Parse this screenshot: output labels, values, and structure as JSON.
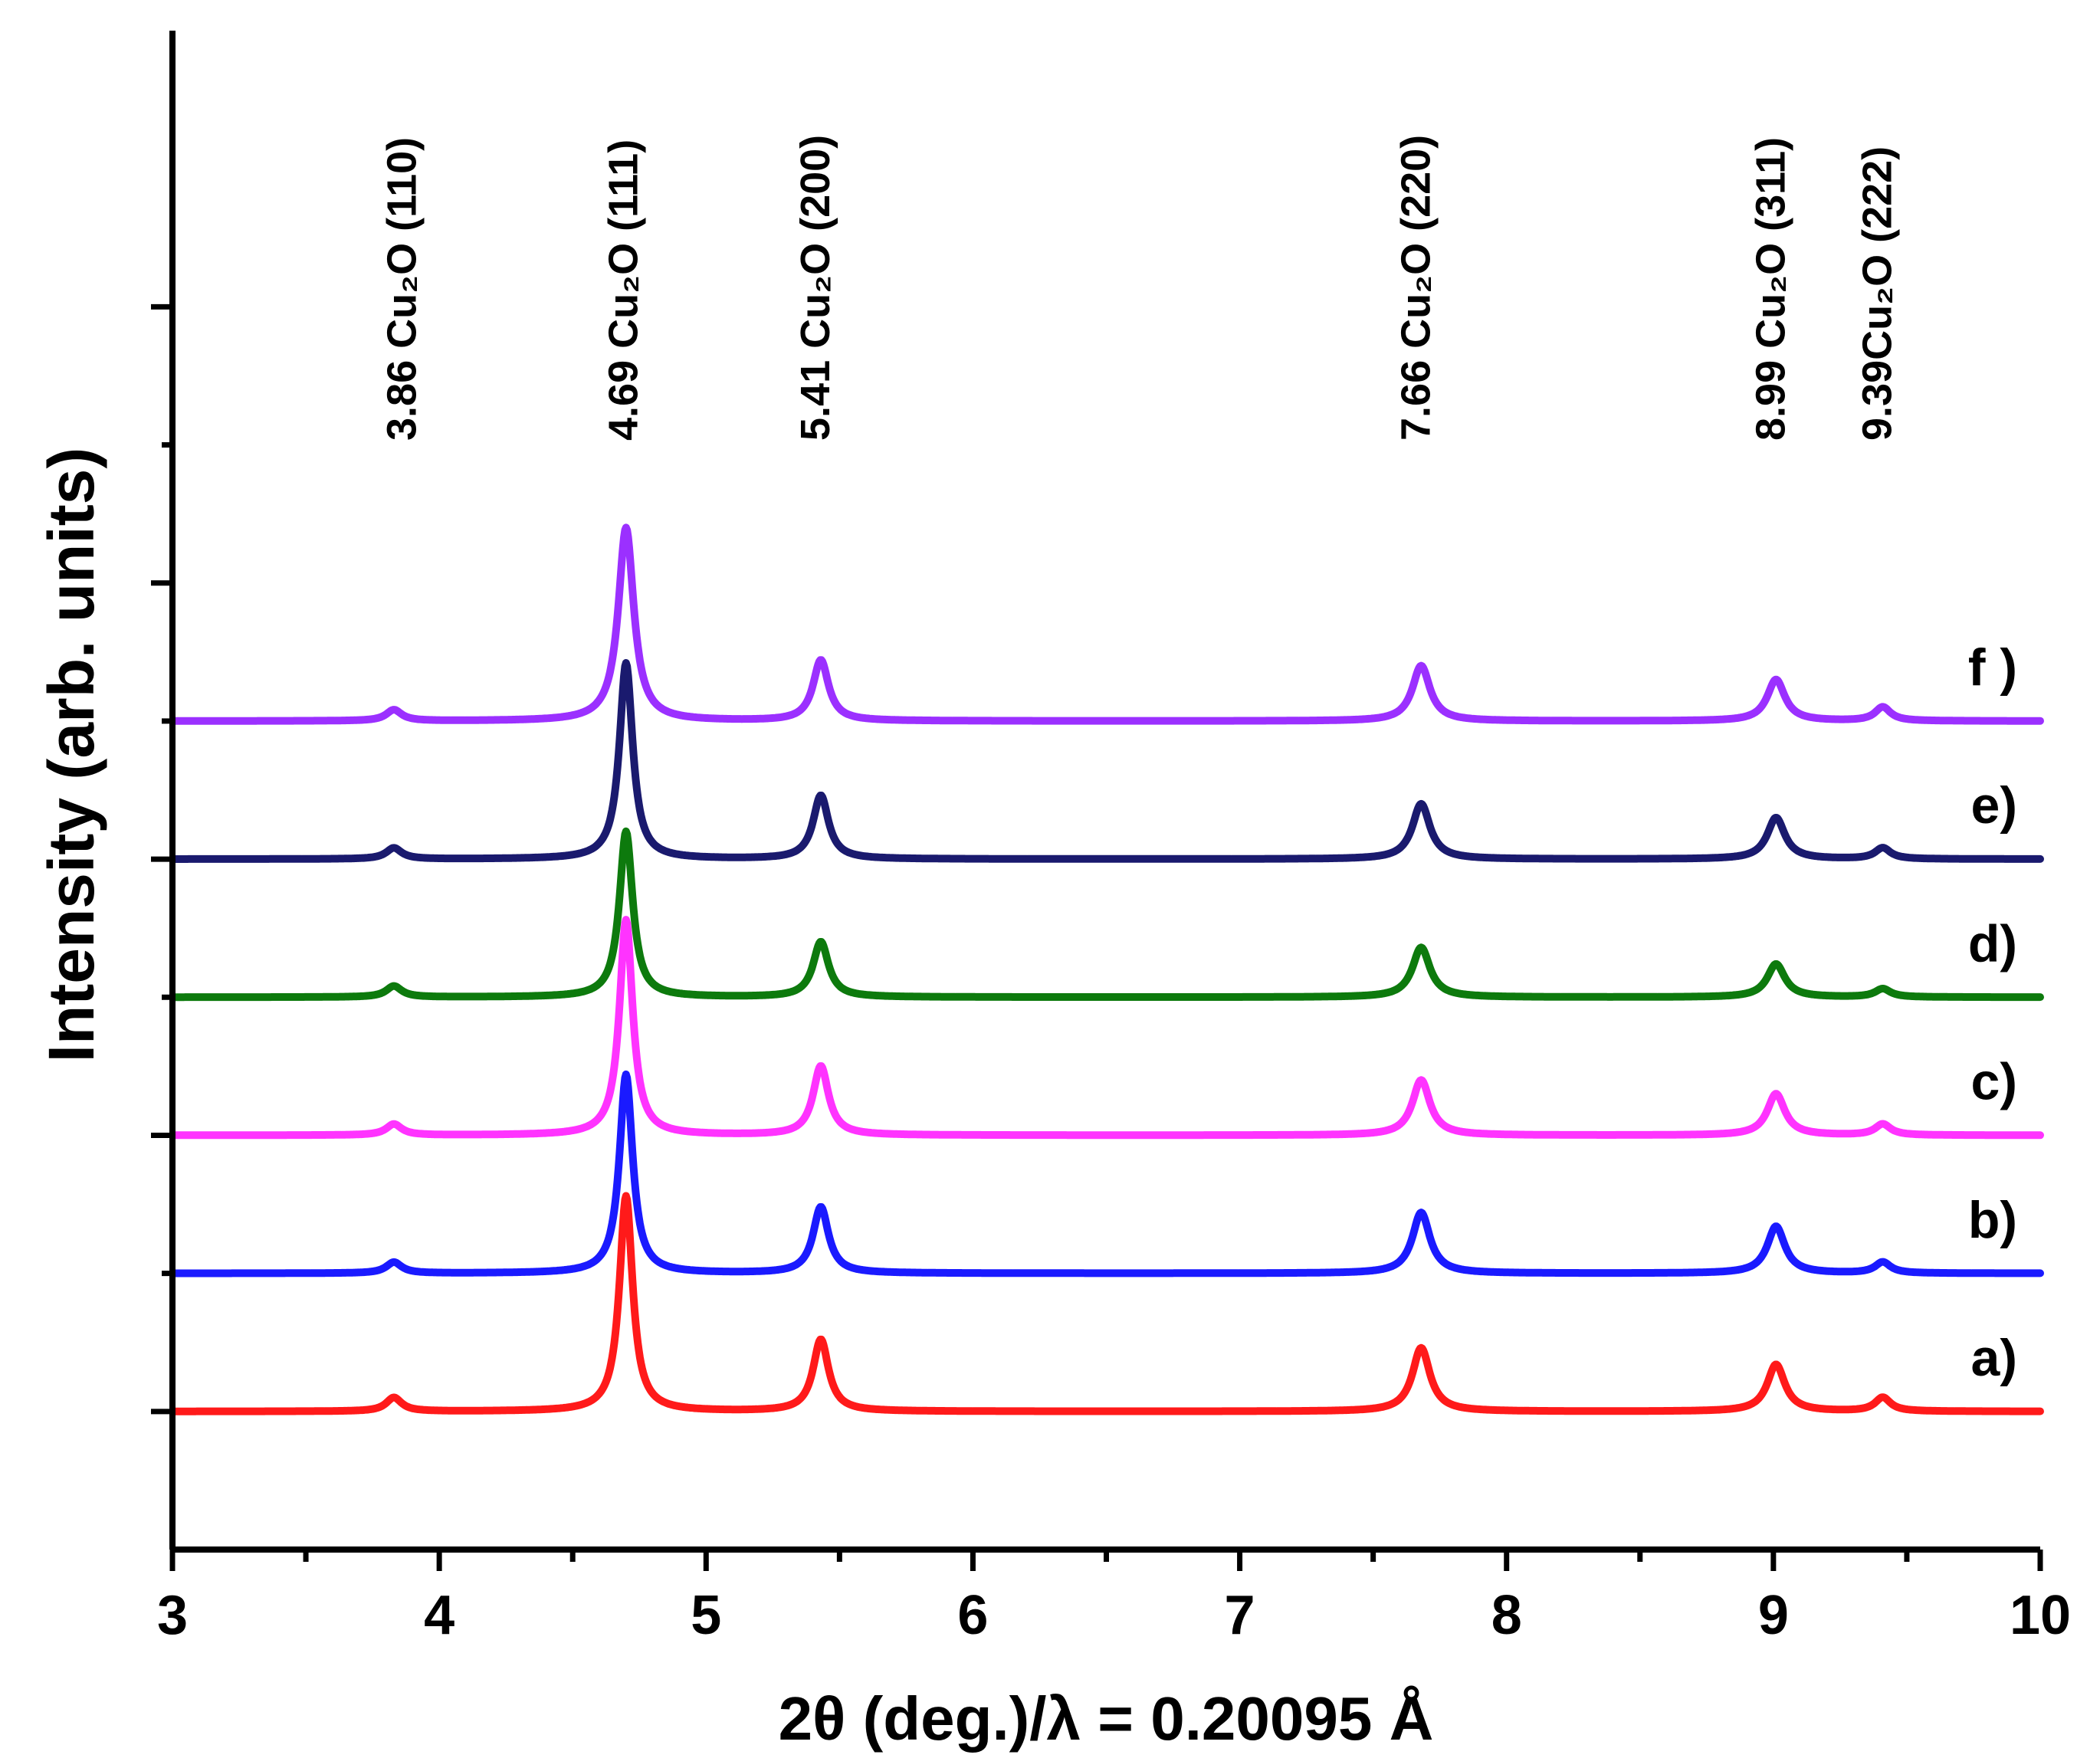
{
  "chart_data": {
    "type": "line",
    "title": "",
    "xlabel": "2θ (deg.)/λ = 0.20095 Å",
    "ylabel": "Intensity (arb. units)",
    "xlim": [
      3,
      10
    ],
    "ylim": [
      -0.5,
      5
    ],
    "x_ticks": [
      "3",
      "4",
      "5",
      "6",
      "7",
      "8",
      "9",
      "10"
    ],
    "y_ticks_labeled": false,
    "peak_annotations": [
      {
        "x": 3.86,
        "text": "3.86 Cu₂O (110)"
      },
      {
        "x": 4.69,
        "text": "4.69 Cu₂O (111)"
      },
      {
        "x": 5.41,
        "text": "5.41 Cu₂O (200)"
      },
      {
        "x": 7.66,
        "text": "7.66 Cu₂O (220)"
      },
      {
        "x": 8.99,
        "text": "8.99 Cu₂O (311)"
      },
      {
        "x": 9.39,
        "text": "9.39Cu₂O (222)"
      }
    ],
    "series": [
      {
        "name": "a)",
        "color": "#ff1a1a",
        "baseline": 0.0,
        "peaks": [
          {
            "x": 3.83,
            "h": 0.05,
            "w": 0.035
          },
          {
            "x": 4.7,
            "h": 0.78,
            "w": 0.03
          },
          {
            "x": 5.43,
            "h": 0.26,
            "w": 0.035
          },
          {
            "x": 7.68,
            "h": 0.23,
            "w": 0.04
          },
          {
            "x": 9.01,
            "h": 0.17,
            "w": 0.04
          },
          {
            "x": 9.41,
            "h": 0.05,
            "w": 0.035
          }
        ]
      },
      {
        "name": "b)",
        "color": "#1a1aff",
        "baseline": 0.5,
        "peaks": [
          {
            "x": 3.83,
            "h": 0.04,
            "w": 0.035
          },
          {
            "x": 4.7,
            "h": 0.72,
            "w": 0.03
          },
          {
            "x": 5.43,
            "h": 0.24,
            "w": 0.035
          },
          {
            "x": 7.68,
            "h": 0.22,
            "w": 0.04
          },
          {
            "x": 9.01,
            "h": 0.17,
            "w": 0.04
          },
          {
            "x": 9.41,
            "h": 0.04,
            "w": 0.035
          }
        ]
      },
      {
        "name": "c)",
        "color": "#ff33ff",
        "baseline": 1.0,
        "peaks": [
          {
            "x": 3.83,
            "h": 0.04,
            "w": 0.035
          },
          {
            "x": 4.7,
            "h": 0.78,
            "w": 0.03
          },
          {
            "x": 5.43,
            "h": 0.25,
            "w": 0.035
          },
          {
            "x": 7.68,
            "h": 0.2,
            "w": 0.04
          },
          {
            "x": 9.01,
            "h": 0.15,
            "w": 0.04
          },
          {
            "x": 9.41,
            "h": 0.04,
            "w": 0.035
          }
        ]
      },
      {
        "name": "d)",
        "color": "#0d7a0d",
        "baseline": 1.5,
        "peaks": [
          {
            "x": 3.83,
            "h": 0.04,
            "w": 0.035
          },
          {
            "x": 4.7,
            "h": 0.6,
            "w": 0.03
          },
          {
            "x": 5.43,
            "h": 0.2,
            "w": 0.035
          },
          {
            "x": 7.68,
            "h": 0.18,
            "w": 0.04
          },
          {
            "x": 9.01,
            "h": 0.12,
            "w": 0.04
          },
          {
            "x": 9.41,
            "h": 0.03,
            "w": 0.035
          }
        ]
      },
      {
        "name": "e)",
        "color": "#1a1a6e",
        "baseline": 2.0,
        "peaks": [
          {
            "x": 3.83,
            "h": 0.04,
            "w": 0.035
          },
          {
            "x": 4.7,
            "h": 0.71,
            "w": 0.03
          },
          {
            "x": 5.43,
            "h": 0.23,
            "w": 0.035
          },
          {
            "x": 7.68,
            "h": 0.2,
            "w": 0.04
          },
          {
            "x": 9.01,
            "h": 0.15,
            "w": 0.04
          },
          {
            "x": 9.41,
            "h": 0.04,
            "w": 0.035
          }
        ]
      },
      {
        "name": "f )",
        "color": "#9b30ff",
        "baseline": 2.5,
        "peaks": [
          {
            "x": 3.83,
            "h": 0.04,
            "w": 0.035
          },
          {
            "x": 4.7,
            "h": 0.7,
            "w": 0.035
          },
          {
            "x": 5.43,
            "h": 0.22,
            "w": 0.035
          },
          {
            "x": 7.68,
            "h": 0.2,
            "w": 0.04
          },
          {
            "x": 9.01,
            "h": 0.15,
            "w": 0.04
          },
          {
            "x": 9.41,
            "h": 0.05,
            "w": 0.035
          }
        ]
      }
    ]
  }
}
